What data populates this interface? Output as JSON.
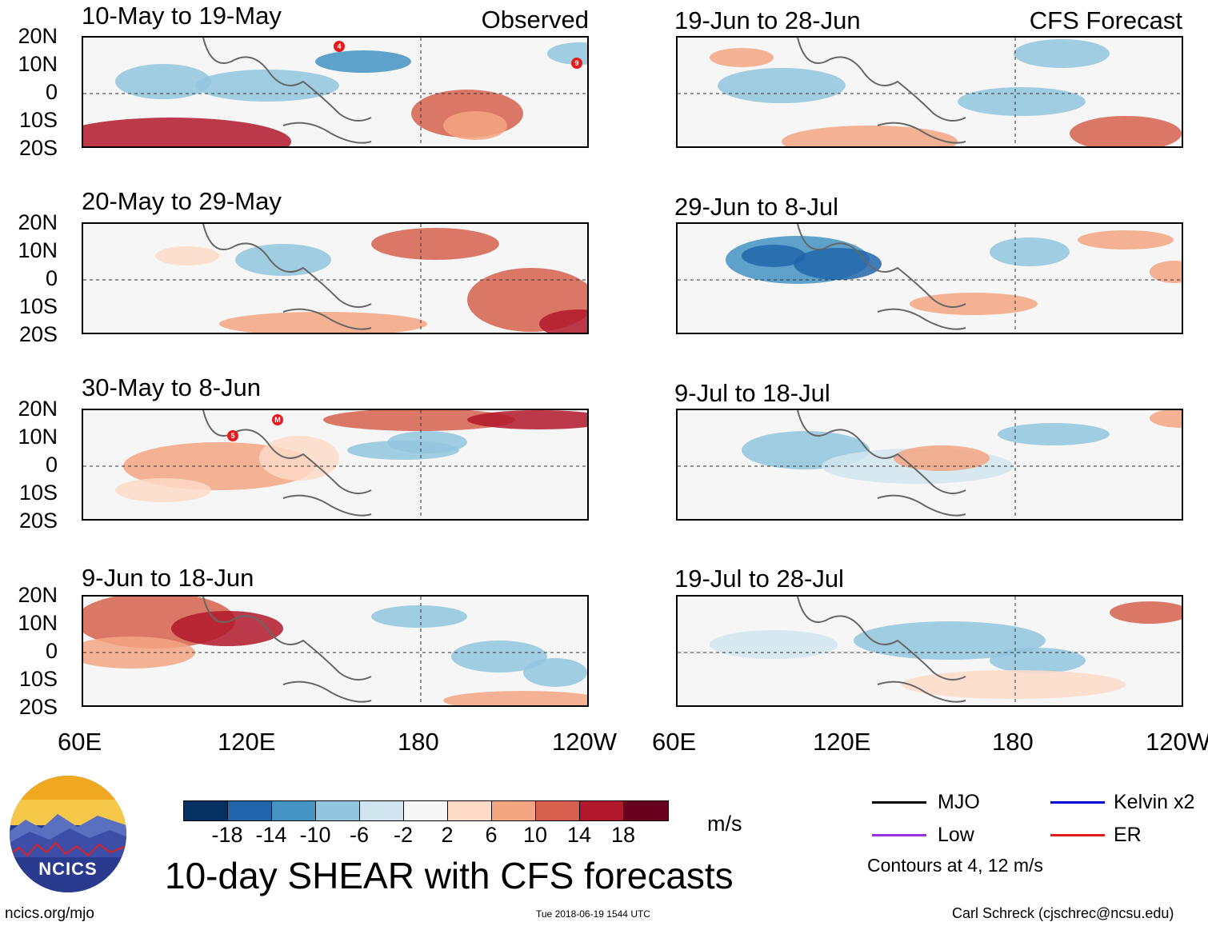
{
  "panels": [
    {
      "id": "p1",
      "title": "10-May to 19-May",
      "tag": "Observed",
      "type": "observed"
    },
    {
      "id": "p2",
      "title": "20-May to 29-May",
      "tag": "",
      "type": "observed"
    },
    {
      "id": "p3",
      "title": "30-May to 8-Jun",
      "tag": "",
      "type": "observed"
    },
    {
      "id": "p4",
      "title": "9-Jun to 18-Jun",
      "tag": "",
      "type": "observed"
    },
    {
      "id": "p5",
      "title": "19-Jun to 28-Jun",
      "tag": "CFS Forecast",
      "type": "forecast"
    },
    {
      "id": "p6",
      "title": "29-Jun to 8-Jul",
      "tag": "",
      "type": "forecast"
    },
    {
      "id": "p7",
      "title": "9-Jul to 18-Jul",
      "tag": "",
      "type": "forecast"
    },
    {
      "id": "p8",
      "title": "19-Jul to 28-Jul",
      "tag": "",
      "type": "forecast"
    }
  ],
  "lat_labels": [
    "20N",
    "10N",
    "0",
    "10S",
    "20S"
  ],
  "lon_labels": [
    "60E",
    "120E",
    "180",
    "120W"
  ],
  "colorbar": {
    "colors": [
      "#053061",
      "#2166ac",
      "#4393c3",
      "#92c5de",
      "#d1e5f0",
      "#f7f7f7",
      "#fddbc7",
      "#f4a582",
      "#d6604d",
      "#b2182b",
      "#67001f"
    ],
    "labels": [
      "-18",
      "-14",
      "-10",
      "-6",
      "-2",
      "2",
      "6",
      "10",
      "14",
      "18"
    ],
    "units": "m/s"
  },
  "main_title": "10-day SHEAR with CFS forecasts",
  "legend": {
    "items": [
      {
        "label": "MJO",
        "color": "#000000"
      },
      {
        "label": "Kelvin x2",
        "color": "#0000dd"
      },
      {
        "label": "Low",
        "color": "#9b30e0"
      },
      {
        "label": "ER",
        "color": "#e41a1c"
      }
    ],
    "note": "Contours at 4, 12 m/s"
  },
  "footer": {
    "site": "ncics.org/mjo",
    "timestamp": "Tue 2018-06-19 1544 UTC",
    "author": "Carl Schreck (cjschrec@ncsu.edu)"
  },
  "logo": {
    "text": "NCICS"
  },
  "storm_markers": {
    "p1": [
      "4",
      "9"
    ],
    "p3": [
      "5",
      "M"
    ]
  }
}
